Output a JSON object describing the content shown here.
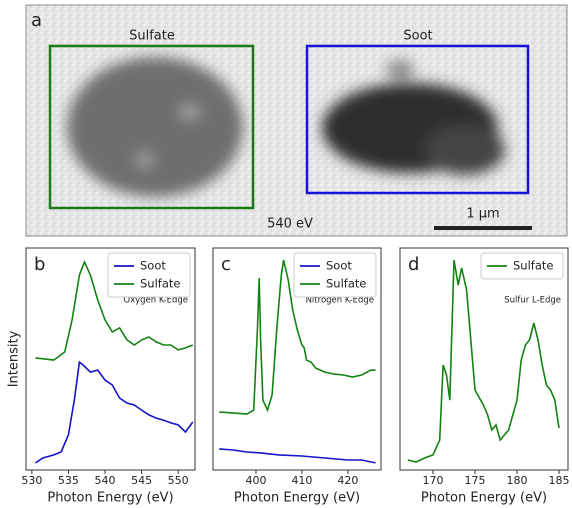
{
  "panel_a": {
    "label": "a",
    "regions": [
      {
        "label": "Sulfate"
      },
      {
        "label": "Soot"
      }
    ],
    "energy": "540 eV",
    "scale_bar": "1 μm"
  },
  "chart_data": [
    {
      "type": "line",
      "panel": "b",
      "ylabel": "Intensity",
      "xlabel": "Photon Energy (eV)",
      "annotation": "Oxygen K-Edge",
      "xlim": [
        529.2,
        552.3
      ],
      "xticks": [
        530,
        535,
        540,
        545,
        550
      ],
      "ylim": [
        0,
        1
      ],
      "legend": "upper right",
      "series": [
        {
          "name": "Soot",
          "color": "#1414c8",
          "x": [
            530.5,
            531.5,
            533,
            534,
            535,
            535.8,
            536.5,
            537,
            538,
            539,
            540,
            541,
            542,
            543,
            544,
            545,
            546,
            547,
            548,
            549,
            550,
            551,
            552
          ],
          "values": [
            0.032,
            0.054,
            0.068,
            0.081,
            0.158,
            0.315,
            0.486,
            0.473,
            0.441,
            0.45,
            0.405,
            0.383,
            0.324,
            0.302,
            0.293,
            0.27,
            0.248,
            0.234,
            0.225,
            0.212,
            0.203,
            0.171,
            0.216
          ]
        },
        {
          "name": "Sulfate",
          "color": "#128212",
          "x": [
            530.5,
            533,
            534.5,
            535.5,
            536.5,
            537.2,
            538,
            539,
            540,
            541,
            542,
            543,
            544,
            545,
            546,
            547,
            548,
            549,
            550,
            551,
            552
          ],
          "values": [
            0.505,
            0.495,
            0.532,
            0.676,
            0.878,
            0.937,
            0.878,
            0.766,
            0.676,
            0.622,
            0.64,
            0.586,
            0.563,
            0.586,
            0.599,
            0.577,
            0.563,
            0.563,
            0.541,
            0.55,
            0.563
          ]
        }
      ]
    },
    {
      "type": "line",
      "panel": "c",
      "xlabel": "Photon Energy (eV)",
      "annotation": "Nitrogen K-Edge",
      "xlim": [
        390.65,
        427.2
      ],
      "xticks": [
        400,
        410,
        420
      ],
      "ylim": [
        0,
        1
      ],
      "legend": "upper right",
      "series": [
        {
          "name": "Soot",
          "color": "#1414c8",
          "x": [
            392,
            395,
            398,
            401,
            405,
            410,
            415,
            420,
            423,
            426
          ],
          "values": [
            0.095,
            0.09,
            0.081,
            0.077,
            0.068,
            0.063,
            0.054,
            0.045,
            0.045,
            0.032
          ]
        },
        {
          "name": "Sulfate",
          "color": "#128212",
          "x": [
            392,
            395,
            398,
            399.5,
            400.3,
            400.7,
            401,
            401.5,
            402.5,
            403.5,
            404.5,
            405.5,
            406,
            407,
            408,
            409,
            410,
            410.5,
            411,
            412,
            413,
            415,
            417,
            419,
            421,
            423,
            425,
            426
          ],
          "values": [
            0.261,
            0.257,
            0.252,
            0.27,
            0.631,
            0.865,
            0.586,
            0.315,
            0.27,
            0.338,
            0.631,
            0.878,
            0.946,
            0.856,
            0.721,
            0.631,
            0.563,
            0.55,
            0.495,
            0.486,
            0.459,
            0.441,
            0.432,
            0.428,
            0.419,
            0.428,
            0.45,
            0.45
          ]
        }
      ]
    },
    {
      "type": "line",
      "panel": "d",
      "xlabel": "Photon Energy (eV)",
      "annotation": "Sulfur L-Edge",
      "xlim": [
        166.07,
        186.07
      ],
      "xticks": [
        170,
        175,
        180,
        185
      ],
      "ylim": [
        0,
        1
      ],
      "legend": "upper right",
      "series": [
        {
          "name": "Sulfate",
          "color": "#128212",
          "x": [
            167,
            168,
            169,
            170,
            170.8,
            171.2,
            171.6,
            172,
            172.5,
            173,
            173.4,
            174,
            174.5,
            175,
            176,
            176.5,
            177,
            177.5,
            178,
            179,
            180,
            180.5,
            181,
            181.5,
            182,
            182.5,
            183,
            183.5,
            184,
            184.5,
            185
          ],
          "values": [
            0.045,
            0.036,
            0.054,
            0.068,
            0.135,
            0.473,
            0.428,
            0.315,
            0.946,
            0.833,
            0.91,
            0.811,
            0.586,
            0.36,
            0.293,
            0.248,
            0.18,
            0.203,
            0.135,
            0.18,
            0.315,
            0.495,
            0.563,
            0.586,
            0.662,
            0.586,
            0.473,
            0.383,
            0.36,
            0.315,
            0.189
          ]
        }
      ]
    }
  ]
}
